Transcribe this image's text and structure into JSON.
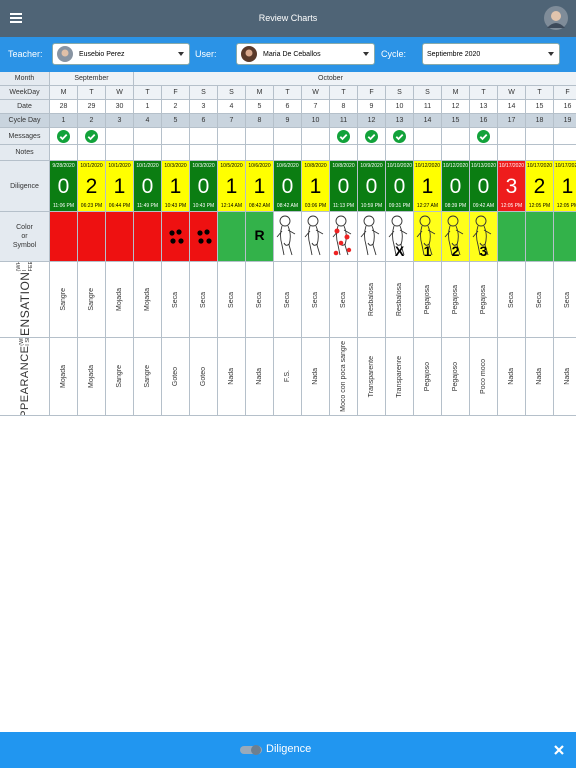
{
  "header": {
    "title": "Review Charts"
  },
  "filters": {
    "teacher_label": "Teacher:",
    "teacher": "Eusebio Perez",
    "user_label": "User:",
    "user": "Maria De Ceballos",
    "cycle_label": "Cycle:",
    "cycle": "Septiembre 2020"
  },
  "table": {
    "row_labels": {
      "month": "Month",
      "weekday": "WeekDay",
      "date": "Date",
      "cycle_day": "Cycle Day",
      "messages": "Messages",
      "notes": "Notes",
      "diligence": "Diligence",
      "symbol": [
        "Color",
        "or",
        "Symbol"
      ],
      "sensation": [
        "SENSATION",
        "(WHAT I FEEL)"
      ],
      "appearance": [
        "APPEARANCE",
        "(WHAT I SEE)"
      ]
    },
    "months": [
      {
        "label": "September",
        "span": 3
      },
      {
        "label": "October",
        "span": 16
      }
    ],
    "diligence_colors": {
      "0": "#0b7d12",
      "1": "#ffff00",
      "2": "#ffff00",
      "3": "#ee1c1c"
    },
    "symbol_colors": {
      "red": "#ee1111",
      "green": "#33b24a",
      "white": "#ffffff",
      "yellow": "#ffff1a"
    },
    "columns": [
      {
        "weekday": "M",
        "date": 28,
        "cycle_day": 1,
        "message": true,
        "diligence": {
          "date": "9/28/2020",
          "value": 0,
          "time": "11:06 PM"
        },
        "symbol": {
          "color": "red"
        },
        "sensation": "Sangre",
        "appearance": "Mojada"
      },
      {
        "weekday": "T",
        "date": 29,
        "cycle_day": 2,
        "message": true,
        "diligence": {
          "date": "10/1/2020",
          "value": 2,
          "time": "06:23 PM"
        },
        "symbol": {
          "color": "red"
        },
        "sensation": "Sangre",
        "appearance": "Mojada"
      },
      {
        "weekday": "W",
        "date": 30,
        "cycle_day": 3,
        "message": false,
        "diligence": {
          "date": "10/1/2020",
          "value": 1,
          "time": "06:44 PM"
        },
        "symbol": {
          "color": "red"
        },
        "sensation": "Mojada",
        "appearance": "Sangre"
      },
      {
        "weekday": "T",
        "date": 1,
        "cycle_day": 4,
        "message": false,
        "diligence": {
          "date": "10/1/2020",
          "value": 0,
          "time": "11:49 PM"
        },
        "symbol": {
          "color": "red"
        },
        "sensation": "Mojada",
        "appearance": "Sangre"
      },
      {
        "weekday": "F",
        "date": 2,
        "cycle_day": 5,
        "message": false,
        "diligence": {
          "date": "10/3/2020",
          "value": 1,
          "time": "10:43 PM"
        },
        "symbol": {
          "color": "red",
          "icon": "dots"
        },
        "sensation": "Seca",
        "appearance": "Goteo"
      },
      {
        "weekday": "S",
        "date": 3,
        "cycle_day": 6,
        "message": false,
        "diligence": {
          "date": "10/3/2020",
          "value": 0,
          "time": "10:43 PM"
        },
        "symbol": {
          "color": "red",
          "icon": "dots"
        },
        "sensation": "Seca",
        "appearance": "Goteo"
      },
      {
        "weekday": "S",
        "date": 4,
        "cycle_day": 7,
        "message": false,
        "diligence": {
          "date": "10/5/2020",
          "value": 1,
          "time": "12:14 AM"
        },
        "symbol": {
          "color": "green"
        },
        "sensation": "Seca",
        "appearance": "Nada"
      },
      {
        "weekday": "M",
        "date": 5,
        "cycle_day": 8,
        "message": false,
        "diligence": {
          "date": "10/6/2020",
          "value": 1,
          "time": "08:42 AM"
        },
        "symbol": {
          "color": "green",
          "text": "R"
        },
        "sensation": "Seca",
        "appearance": "Nada"
      },
      {
        "weekday": "T",
        "date": 6,
        "cycle_day": 9,
        "message": false,
        "diligence": {
          "date": "10/6/2020",
          "value": 0,
          "time": "08:42 AM"
        },
        "symbol": {
          "color": "white",
          "icon": "baby"
        },
        "sensation": "Seca",
        "appearance": "F.S."
      },
      {
        "weekday": "W",
        "date": 7,
        "cycle_day": 10,
        "message": false,
        "diligence": {
          "date": "10/8/2020",
          "value": 1,
          "time": "03:06 PM"
        },
        "symbol": {
          "color": "white",
          "icon": "baby"
        },
        "sensation": "Seca",
        "appearance": "Nada"
      },
      {
        "weekday": "T",
        "date": 8,
        "cycle_day": 11,
        "message": true,
        "diligence": {
          "date": "10/8/2020",
          "value": 0,
          "time": "11:13 PM"
        },
        "symbol": {
          "color": "white",
          "icon": "baby-red"
        },
        "sensation": "Seca",
        "appearance": "Moco con poca sangre"
      },
      {
        "weekday": "F",
        "date": 9,
        "cycle_day": 12,
        "message": true,
        "diligence": {
          "date": "10/9/2020",
          "value": 0,
          "time": "10:59 PM"
        },
        "symbol": {
          "color": "white",
          "icon": "baby"
        },
        "sensation": "Resbalosa",
        "appearance": "Transparente"
      },
      {
        "weekday": "S",
        "date": 10,
        "cycle_day": 13,
        "message": true,
        "diligence": {
          "date": "10/10/2020",
          "value": 0,
          "time": "09:31 PM"
        },
        "symbol": {
          "color": "white",
          "icon": "baby",
          "text": "X"
        },
        "sensation": "Resbalosa",
        "appearance": "Transparenre"
      },
      {
        "weekday": "S",
        "date": 11,
        "cycle_day": 14,
        "message": false,
        "diligence": {
          "date": "10/12/2020",
          "value": 1,
          "time": "12:27 AM"
        },
        "symbol": {
          "color": "yellow",
          "icon": "baby",
          "text": "1"
        },
        "sensation": "Pegajosa",
        "appearance": "Pegajoso"
      },
      {
        "weekday": "M",
        "date": 12,
        "cycle_day": 15,
        "message": false,
        "diligence": {
          "date": "10/12/2020",
          "value": 0,
          "time": "08:39 PM"
        },
        "symbol": {
          "color": "yellow",
          "icon": "baby",
          "text": "2"
        },
        "sensation": "Pegajosa",
        "appearance": "Pegajoso"
      },
      {
        "weekday": "T",
        "date": 13,
        "cycle_day": 16,
        "message": true,
        "diligence": {
          "date": "10/13/2020",
          "value": 0,
          "time": "09:42 AM"
        },
        "symbol": {
          "color": "yellow",
          "icon": "baby",
          "text": "3"
        },
        "sensation": "Pegajosa",
        "appearance": "Poco moco"
      },
      {
        "weekday": "W",
        "date": 14,
        "cycle_day": 17,
        "message": false,
        "diligence": {
          "date": "10/17/2020",
          "value": 3,
          "time": "12:05 PM"
        },
        "symbol": {
          "color": "green"
        },
        "sensation": "Seca",
        "appearance": "Nada"
      },
      {
        "weekday": "T",
        "date": 15,
        "cycle_day": 18,
        "message": false,
        "diligence": {
          "date": "10/17/2020",
          "value": 2,
          "time": "12:05 PM"
        },
        "symbol": {
          "color": "green"
        },
        "sensation": "Seca",
        "appearance": "Nada"
      },
      {
        "weekday": "F",
        "date": 16,
        "cycle_day": 19,
        "message": false,
        "diligence": {
          "date": "10/17/2020",
          "value": 1,
          "time": "12:05 PM"
        },
        "symbol": {
          "color": "green"
        },
        "sensation": "Seca",
        "appearance": "Nada"
      }
    ]
  },
  "footer": {
    "label": "Diligence"
  }
}
